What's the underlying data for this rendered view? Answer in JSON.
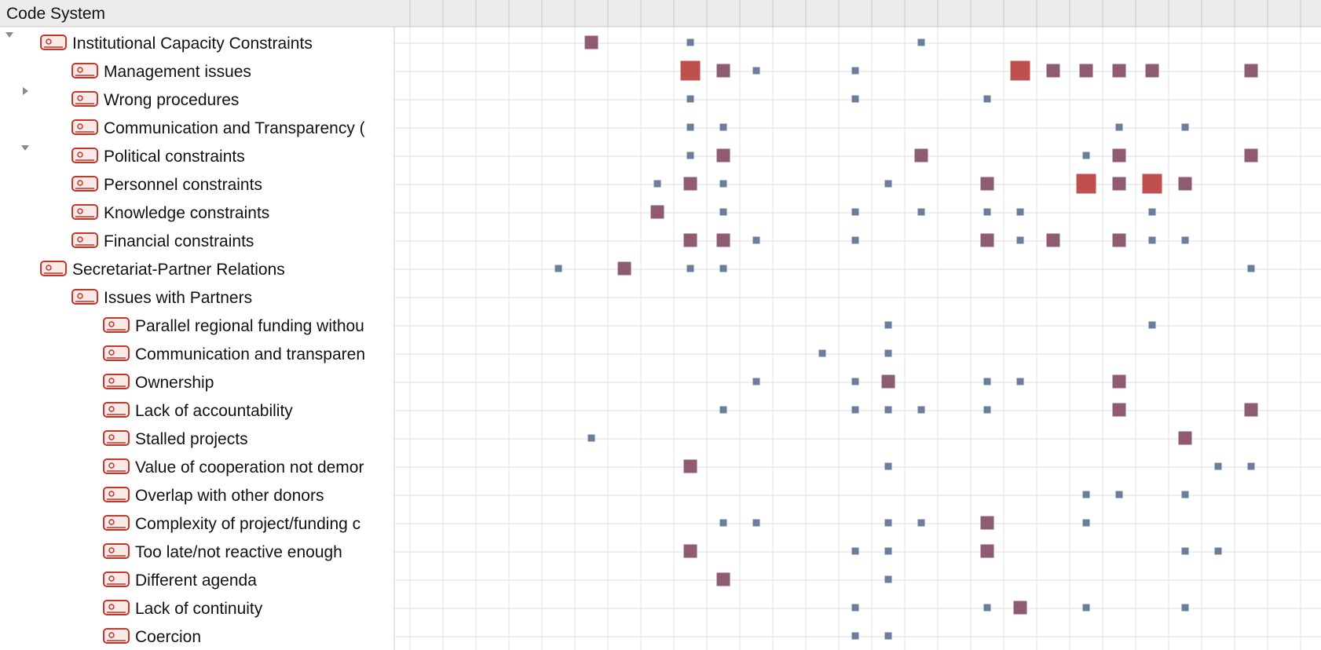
{
  "header": {
    "title": "Code System"
  },
  "columns": 27,
  "colors": {
    "small_square": "#6b7d9c",
    "medium_square": "#8e5b72",
    "large_square": "#c0504d",
    "code_icon": "#c0392b",
    "grid_line": "#e4e4e4",
    "header_bg": "#ececec"
  },
  "rows": [
    {
      "label": "Institutional Capacity Constraints",
      "level": 1,
      "toggle": "expanded",
      "cells": [
        [
          6,
          2
        ],
        [
          9,
          1
        ],
        [
          16,
          1
        ]
      ]
    },
    {
      "label": "Management issues",
      "level": 2,
      "toggle": "",
      "cells": [
        [
          9,
          3
        ],
        [
          10,
          2
        ],
        [
          11,
          1
        ],
        [
          14,
          1
        ],
        [
          19,
          3
        ],
        [
          20,
          2
        ],
        [
          21,
          2
        ],
        [
          22,
          2
        ],
        [
          23,
          2
        ],
        [
          26,
          2
        ]
      ]
    },
    {
      "label": "Wrong procedures",
      "level": 2,
      "toggle": "collapsed",
      "cells": [
        [
          9,
          1
        ],
        [
          14,
          1
        ],
        [
          18,
          1
        ]
      ]
    },
    {
      "label": "Communication and Transparency (",
      "level": 2,
      "toggle": "",
      "cells": [
        [
          9,
          1
        ],
        [
          10,
          1
        ],
        [
          22,
          1
        ],
        [
          24,
          1
        ]
      ]
    },
    {
      "label": "Political constraints",
      "level": 2,
      "toggle": "expanded",
      "cells": [
        [
          9,
          1
        ],
        [
          10,
          2
        ],
        [
          16,
          2
        ],
        [
          21,
          1
        ],
        [
          22,
          2
        ],
        [
          26,
          2
        ]
      ]
    },
    {
      "label": "Personnel constraints",
      "level": 2,
      "toggle": "",
      "cells": [
        [
          8,
          1
        ],
        [
          9,
          2
        ],
        [
          10,
          1
        ],
        [
          15,
          1
        ],
        [
          18,
          2
        ],
        [
          21,
          3
        ],
        [
          22,
          2
        ],
        [
          23,
          3
        ],
        [
          24,
          2
        ]
      ]
    },
    {
      "label": "Knowledge constraints",
      "level": 2,
      "toggle": "",
      "cells": [
        [
          8,
          2
        ],
        [
          10,
          1
        ],
        [
          14,
          1
        ],
        [
          16,
          1
        ],
        [
          18,
          1
        ],
        [
          19,
          1
        ],
        [
          23,
          1
        ]
      ]
    },
    {
      "label": "Financial constraints",
      "level": 2,
      "toggle": "",
      "cells": [
        [
          9,
          2
        ],
        [
          10,
          2
        ],
        [
          11,
          1
        ],
        [
          14,
          1
        ],
        [
          18,
          2
        ],
        [
          19,
          1
        ],
        [
          20,
          2
        ],
        [
          22,
          2
        ],
        [
          23,
          1
        ],
        [
          24,
          1
        ]
      ]
    },
    {
      "label": "Secretariat-Partner Relations",
      "level": 1,
      "toggle": "",
      "cells": [
        [
          5,
          1
        ],
        [
          7,
          2
        ],
        [
          9,
          1
        ],
        [
          10,
          1
        ],
        [
          26,
          1
        ]
      ]
    },
    {
      "label": "Issues with Partners",
      "level": 2,
      "toggle": "",
      "cells": []
    },
    {
      "label": "Parallel regional funding withou",
      "level": 3,
      "toggle": "",
      "cells": [
        [
          15,
          1
        ],
        [
          23,
          1
        ]
      ]
    },
    {
      "label": "Communication and transparen",
      "level": 3,
      "toggle": "",
      "cells": [
        [
          13,
          1
        ],
        [
          15,
          1
        ]
      ]
    },
    {
      "label": "Ownership",
      "level": 3,
      "toggle": "",
      "cells": [
        [
          11,
          1
        ],
        [
          14,
          1
        ],
        [
          15,
          2
        ],
        [
          18,
          1
        ],
        [
          19,
          1
        ],
        [
          22,
          2
        ]
      ]
    },
    {
      "label": "Lack of accountability",
      "level": 3,
      "toggle": "",
      "cells": [
        [
          10,
          1
        ],
        [
          14,
          1
        ],
        [
          15,
          1
        ],
        [
          16,
          1
        ],
        [
          18,
          1
        ],
        [
          22,
          2
        ],
        [
          26,
          2
        ]
      ]
    },
    {
      "label": "Stalled projects",
      "level": 3,
      "toggle": "",
      "cells": [
        [
          6,
          1
        ],
        [
          24,
          2
        ]
      ]
    },
    {
      "label": "Value of cooperation not demor",
      "level": 3,
      "toggle": "",
      "cells": [
        [
          9,
          2
        ],
        [
          15,
          1
        ],
        [
          25,
          1
        ],
        [
          26,
          1
        ]
      ]
    },
    {
      "label": "Overlap with other donors",
      "level": 3,
      "toggle": "",
      "cells": [
        [
          21,
          1
        ],
        [
          22,
          1
        ],
        [
          24,
          1
        ]
      ]
    },
    {
      "label": "Complexity of project/funding c",
      "level": 3,
      "toggle": "",
      "cells": [
        [
          10,
          1
        ],
        [
          11,
          1
        ],
        [
          15,
          1
        ],
        [
          16,
          1
        ],
        [
          18,
          2
        ],
        [
          21,
          1
        ]
      ]
    },
    {
      "label": "Too late/not reactive enough",
      "level": 3,
      "toggle": "",
      "cells": [
        [
          9,
          2
        ],
        [
          14,
          1
        ],
        [
          15,
          1
        ],
        [
          18,
          2
        ],
        [
          24,
          1
        ],
        [
          25,
          1
        ]
      ]
    },
    {
      "label": "Different agenda",
      "level": 3,
      "toggle": "",
      "cells": [
        [
          10,
          2
        ],
        [
          15,
          1
        ]
      ]
    },
    {
      "label": "Lack of continuity",
      "level": 3,
      "toggle": "",
      "cells": [
        [
          14,
          1
        ],
        [
          18,
          1
        ],
        [
          19,
          2
        ],
        [
          21,
          1
        ],
        [
          24,
          1
        ]
      ]
    },
    {
      "label": "Coercion",
      "level": 3,
      "toggle": "",
      "cells": [
        [
          14,
          1
        ],
        [
          15,
          1
        ]
      ]
    }
  ]
}
